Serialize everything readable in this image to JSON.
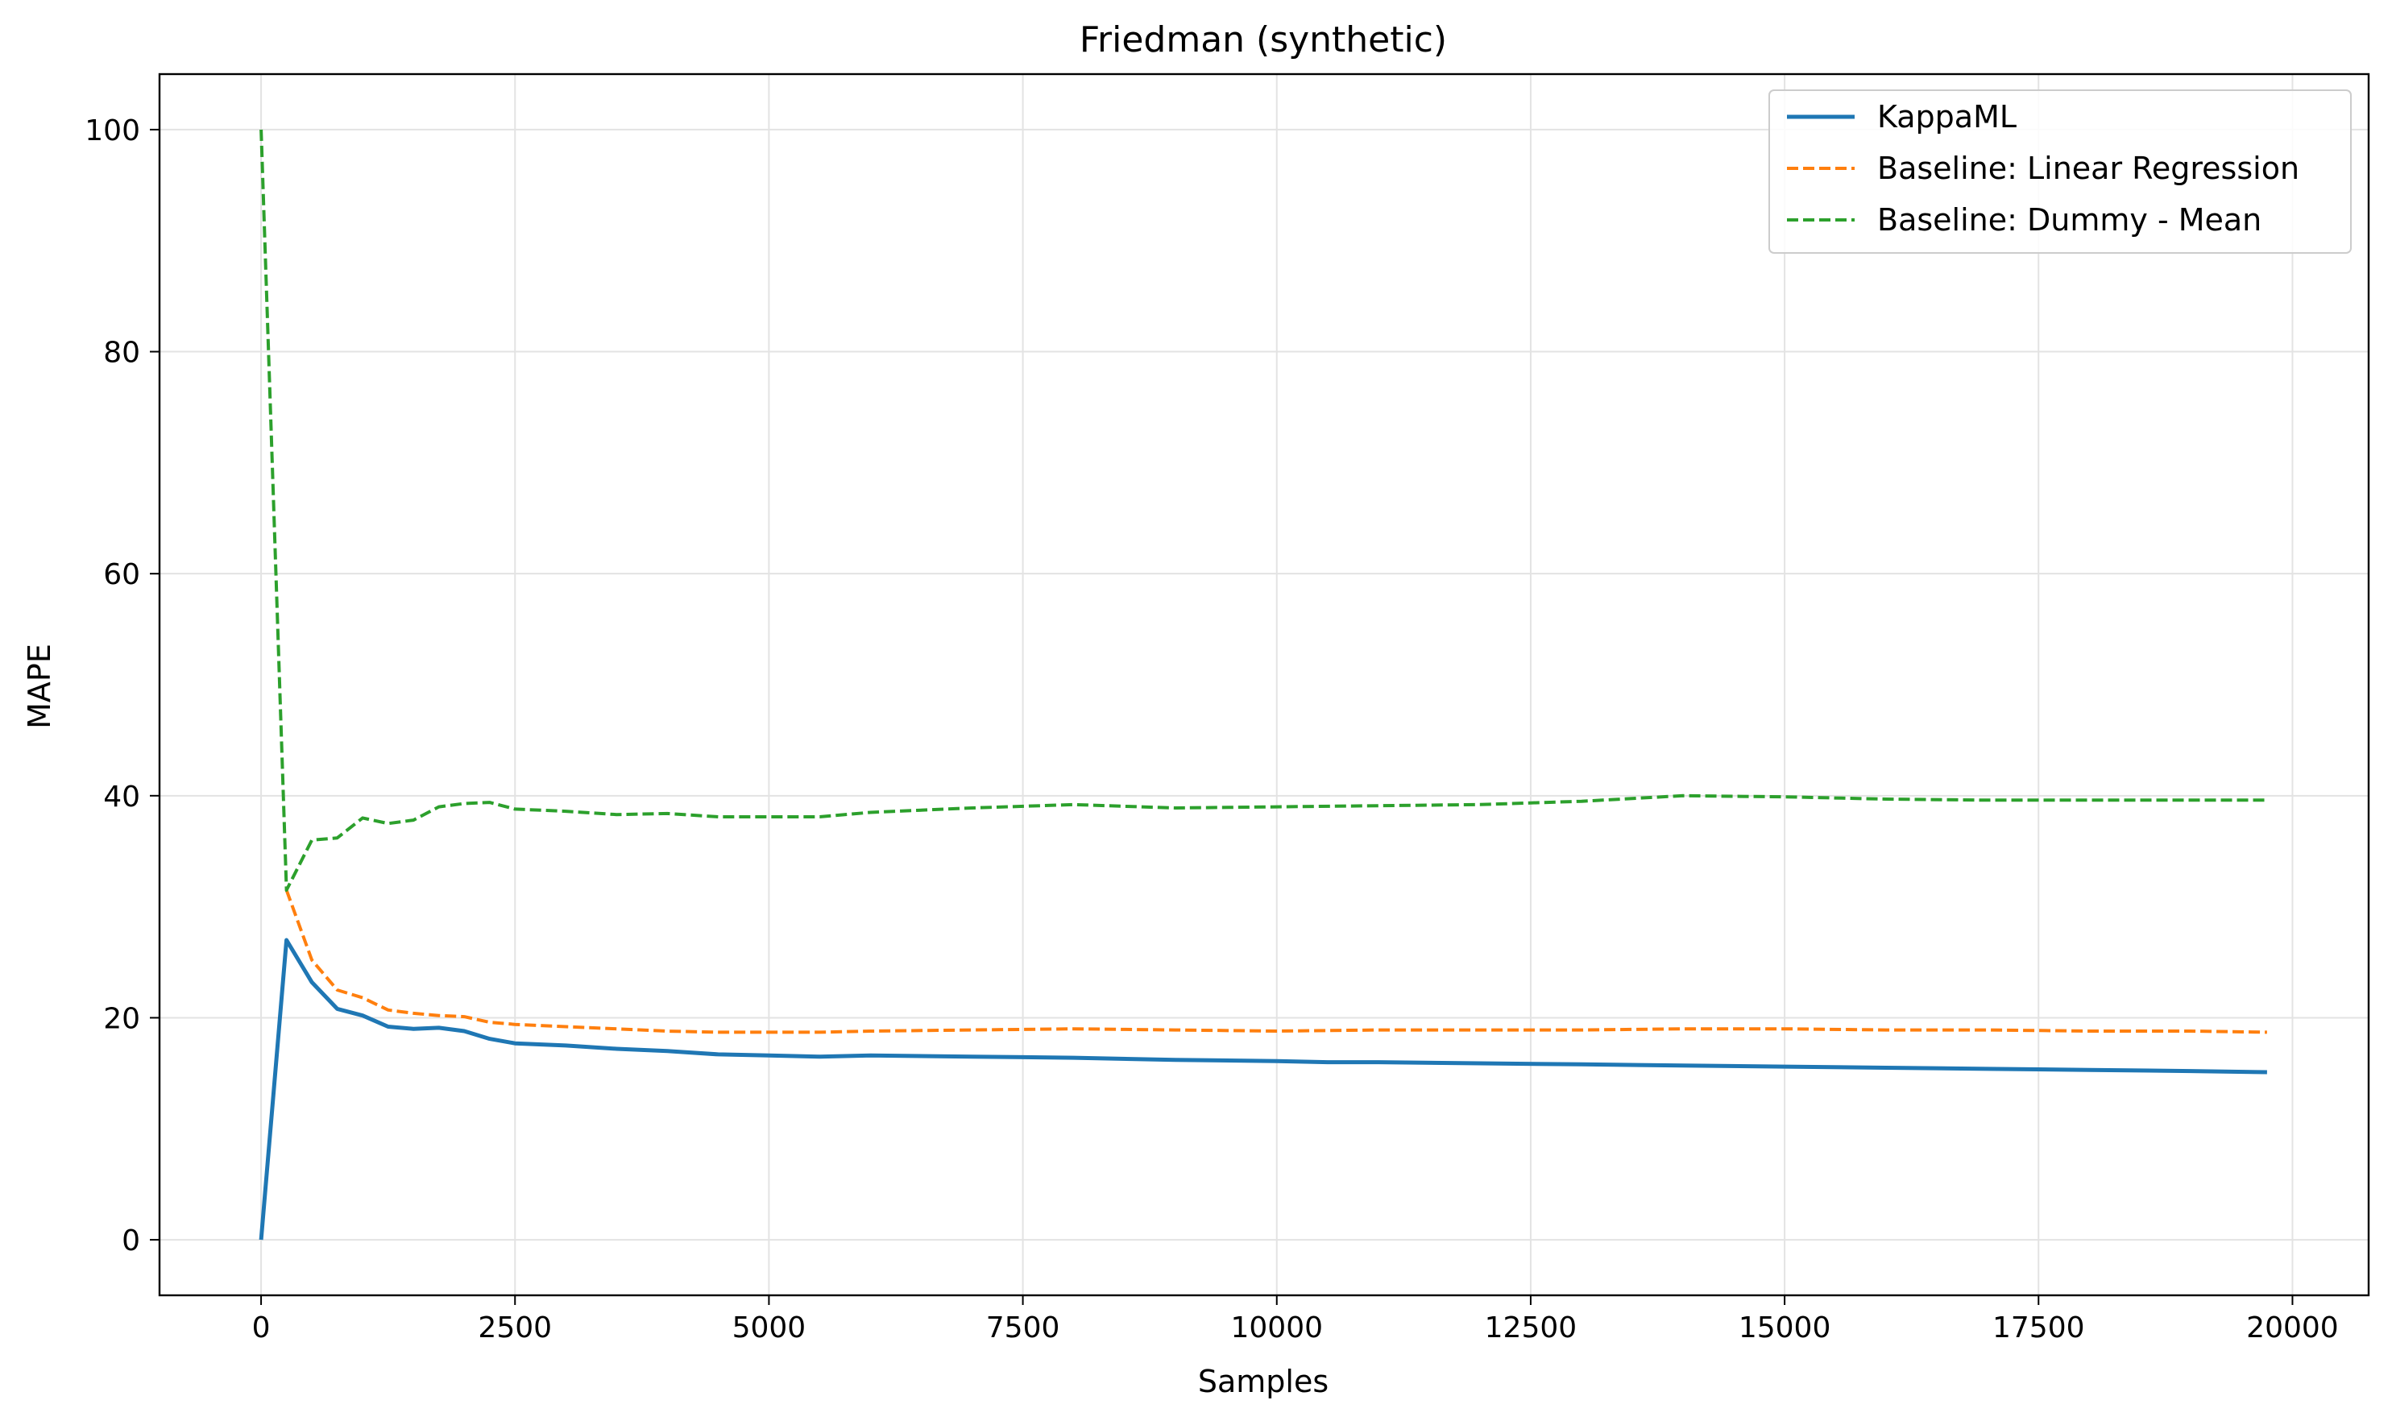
{
  "chart_data": {
    "type": "line",
    "title": "Friedman (synthetic)",
    "xlabel": "Samples",
    "ylabel": "MAPE",
    "xlim": [
      -1000,
      20750
    ],
    "ylim": [
      -5,
      105
    ],
    "grid": true,
    "legend_position": "top-right",
    "xticks": [
      0,
      2500,
      5000,
      7500,
      10000,
      12500,
      15000,
      17500,
      20000
    ],
    "xtick_labels": [
      "0",
      "2500",
      "5000",
      "7500",
      "10000",
      "12500",
      "15000",
      "17500",
      "20000"
    ],
    "yticks": [
      0,
      20,
      40,
      60,
      80,
      100
    ],
    "ytick_labels": [
      "0",
      "20",
      "40",
      "60",
      "80",
      "100"
    ],
    "series": [
      {
        "name": "KappaML",
        "color": "#1f77b4",
        "dash": "solid",
        "x": [
          0,
          250,
          500,
          750,
          1000,
          1250,
          1500,
          1750,
          2000,
          2250,
          2500,
          3000,
          3500,
          4000,
          4500,
          5000,
          5500,
          6000,
          7000,
          8000,
          9000,
          10000,
          10500,
          11000,
          12000,
          13000,
          14000,
          15000,
          16000,
          17000,
          18000,
          19000,
          19750
        ],
        "y": [
          0,
          27,
          23.2,
          20.8,
          20.2,
          19.2,
          19.0,
          19.1,
          18.8,
          18.1,
          17.7,
          17.5,
          17.2,
          17.0,
          16.7,
          16.6,
          16.5,
          16.6,
          16.5,
          16.4,
          16.2,
          16.1,
          16.0,
          16.0,
          15.9,
          15.8,
          15.7,
          15.6,
          15.5,
          15.4,
          15.3,
          15.2,
          15.1
        ]
      },
      {
        "name": "Baseline: Linear Regression",
        "color": "#ff7f0e",
        "dash": "dashed",
        "x": [
          250,
          500,
          750,
          1000,
          1250,
          1500,
          1750,
          2000,
          2250,
          2500,
          3000,
          3500,
          4000,
          4500,
          5000,
          5500,
          6000,
          7000,
          8000,
          9000,
          10000,
          11000,
          12000,
          13000,
          14000,
          15000,
          16000,
          17000,
          18000,
          19000,
          19750
        ],
        "y": [
          31.5,
          25.2,
          22.5,
          21.8,
          20.7,
          20.4,
          20.2,
          20.1,
          19.6,
          19.4,
          19.2,
          19.0,
          18.8,
          18.7,
          18.7,
          18.7,
          18.8,
          18.9,
          19.0,
          18.9,
          18.8,
          18.9,
          18.9,
          18.9,
          19.0,
          19.0,
          18.9,
          18.9,
          18.8,
          18.8,
          18.7
        ]
      },
      {
        "name": "Baseline: Dummy - Mean",
        "color": "#2ca02c",
        "dash": "dashed",
        "x": [
          0,
          250,
          500,
          750,
          1000,
          1250,
          1500,
          1750,
          2000,
          2250,
          2500,
          3000,
          3500,
          4000,
          4500,
          5000,
          5500,
          6000,
          7000,
          8000,
          9000,
          10000,
          11000,
          12000,
          13000,
          14000,
          15000,
          16000,
          17000,
          18000,
          19000,
          19750
        ],
        "y": [
          100,
          31.5,
          36,
          36.2,
          38,
          37.5,
          37.8,
          39,
          39.3,
          39.4,
          38.8,
          38.6,
          38.3,
          38.4,
          38.1,
          38.1,
          38.1,
          38.5,
          38.9,
          39.2,
          38.9,
          39.0,
          39.1,
          39.2,
          39.5,
          40.0,
          39.9,
          39.7,
          39.6,
          39.6,
          39.6,
          39.6
        ]
      }
    ]
  }
}
